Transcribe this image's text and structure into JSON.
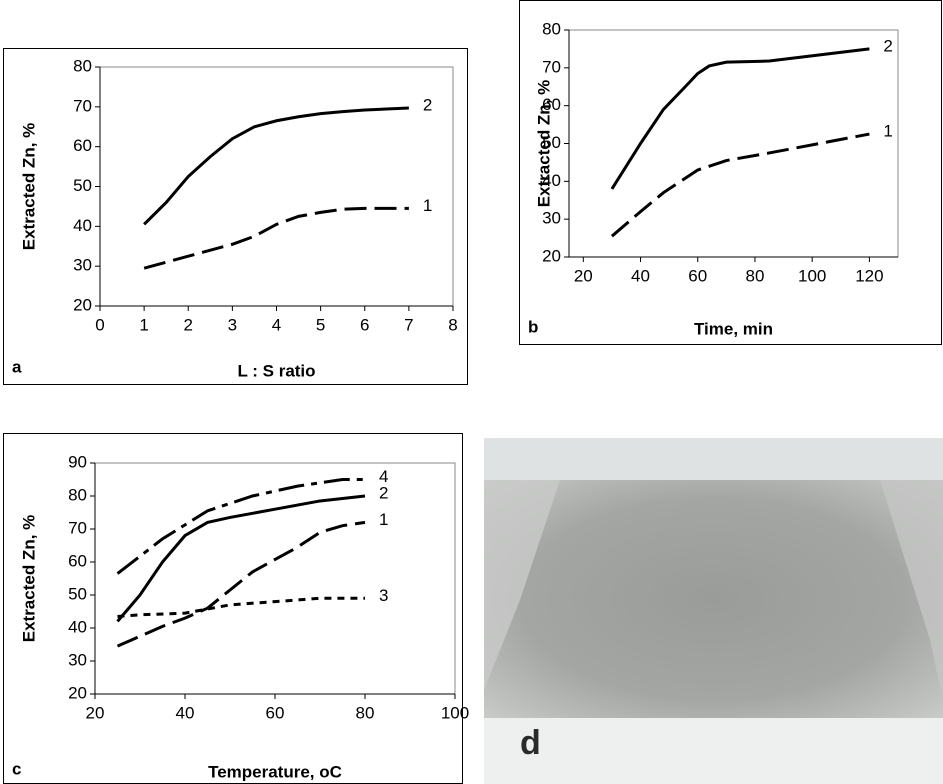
{
  "chart_data": [
    {
      "type": "line",
      "panel_label": "a",
      "x_label": "L : S ratio",
      "y_label": "Extracted Zn, %",
      "xlim": [
        0,
        8
      ],
      "xticks": [
        0,
        1,
        2,
        3,
        4,
        5,
        6,
        7,
        8
      ],
      "ylim": [
        20,
        80
      ],
      "yticks": [
        20,
        30,
        40,
        50,
        60,
        70,
        80
      ],
      "series": [
        {
          "name": "1",
          "color": "#000000",
          "dash": "dashed",
          "x": [
            1,
            1.5,
            2,
            2.5,
            3,
            3.5,
            4,
            4.5,
            5,
            5.5,
            6,
            7
          ],
          "values": [
            29.5,
            31,
            32.5,
            34,
            35.5,
            37.5,
            40.5,
            42.5,
            43.5,
            44.3,
            44.5,
            44.5
          ]
        },
        {
          "name": "2",
          "color": "#000000",
          "dash": "solid",
          "x": [
            1,
            1.5,
            2,
            2.5,
            3,
            3.5,
            4,
            4.5,
            5,
            5.5,
            6,
            7
          ],
          "values": [
            40.5,
            46,
            52.5,
            57.5,
            62,
            65,
            66.5,
            67.5,
            68.3,
            68.8,
            69.2,
            69.7
          ]
        }
      ]
    },
    {
      "type": "line",
      "panel_label": "b",
      "x_label": "Time, min",
      "y_label": "Extracted Zn, %",
      "xlim": [
        15,
        130
      ],
      "xticks": [
        20,
        40,
        60,
        80,
        100,
        120
      ],
      "ylim": [
        20,
        80
      ],
      "yticks": [
        20,
        30,
        40,
        50,
        60,
        70,
        80
      ],
      "series": [
        {
          "name": "2",
          "color": "#000000",
          "dash": "solid",
          "x": [
            30,
            40,
            48,
            55,
            60,
            64,
            70,
            85,
            120
          ],
          "values": [
            38,
            50,
            59,
            64.5,
            68.5,
            70.5,
            71.5,
            71.8,
            75
          ]
        },
        {
          "name": "1",
          "color": "#000000",
          "dash": "dashed",
          "x": [
            30,
            40,
            48,
            60,
            70,
            85,
            120
          ],
          "values": [
            25.5,
            32,
            37,
            43,
            45.5,
            47.5,
            52.5
          ]
        }
      ]
    },
    {
      "type": "line",
      "panel_label": "c",
      "x_label": "Temperature, oC",
      "y_label": "Extracted Zn, %",
      "xlim": [
        20,
        100
      ],
      "xticks": [
        20,
        40,
        60,
        80,
        100
      ],
      "ylim": [
        20,
        90
      ],
      "yticks": [
        20,
        30,
        40,
        50,
        60,
        70,
        80,
        90
      ],
      "series": [
        {
          "name": "4",
          "color": "#000000",
          "dash": "dashdot",
          "x": [
            25,
            35,
            45,
            55,
            65,
            75,
            80
          ],
          "values": [
            56.5,
            67,
            75.5,
            80,
            83,
            85,
            85
          ]
        },
        {
          "name": "2",
          "color": "#000000",
          "dash": "solid",
          "x": [
            25,
            30,
            35,
            40,
            45,
            50,
            60,
            70,
            80
          ],
          "values": [
            42,
            50,
            60,
            68,
            72,
            73.5,
            76,
            78.5,
            80
          ]
        },
        {
          "name": "1",
          "color": "#000000",
          "dash": "dashed",
          "x": [
            25,
            35,
            40,
            45,
            55,
            65,
            70,
            75,
            80
          ],
          "values": [
            34.5,
            40.5,
            43,
            46,
            57,
            64.5,
            69,
            71,
            72
          ]
        },
        {
          "name": "3",
          "color": "#000000",
          "dash": "dotted",
          "x": [
            25,
            30,
            40,
            50,
            60,
            70,
            80
          ],
          "values": [
            43.5,
            44,
            44.5,
            47,
            48,
            49,
            49
          ]
        }
      ]
    }
  ],
  "photo": {
    "label": "d"
  }
}
